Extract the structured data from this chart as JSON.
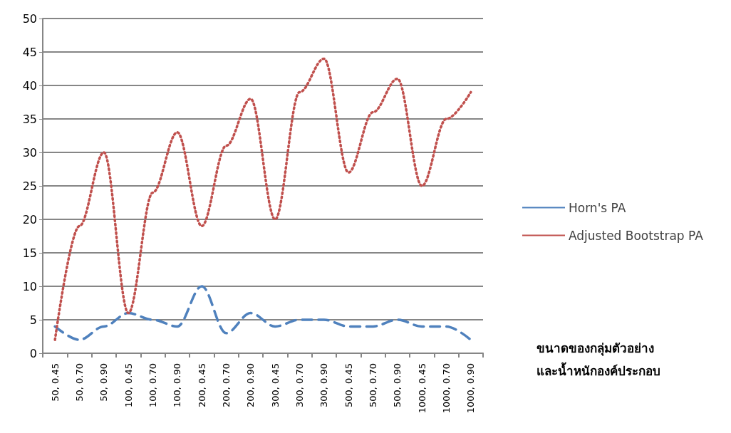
{
  "chart_data": {
    "type": "line",
    "xlabel": "ขนาดของกลุ่มตัวอย่าง\nและน้ำหนักองค์ประกอบ",
    "categories": [
      "50, 0.45",
      "50, 0.70",
      "50, 0.90",
      "100, 0.45",
      "100, 0.70",
      "100, 0.90",
      "200, 0.45",
      "200, 0.70",
      "200, 0.90",
      "300, 0.45",
      "300, 0.70",
      "300, 0.90",
      "500, 0.45",
      "500, 0.70",
      "500, 0.90",
      "1000, 0.45",
      "1000, 0.70",
      "1000, 0.90"
    ],
    "series": [
      {
        "name": "Horn's PA",
        "color": "#4f81bd",
        "line_style": "dashed",
        "values": [
          4,
          2,
          4,
          6,
          5,
          4,
          10,
          3,
          6,
          4,
          5,
          5,
          4,
          4,
          5,
          4,
          4,
          2
        ]
      },
      {
        "name": "Adjusted Bootstrap PA",
        "color": "#c0504d",
        "line_style": "dotted",
        "values": [
          2,
          19,
          30,
          6,
          24,
          33,
          19,
          31,
          38,
          20,
          39,
          44,
          27,
          36,
          41,
          25,
          35,
          39
        ]
      }
    ],
    "ylim": [
      0,
      50
    ],
    "yticks": [
      0,
      5,
      10,
      15,
      20,
      25,
      30,
      35,
      40,
      45,
      50
    ],
    "grid": "y",
    "legend": "right",
    "marker": "none"
  }
}
